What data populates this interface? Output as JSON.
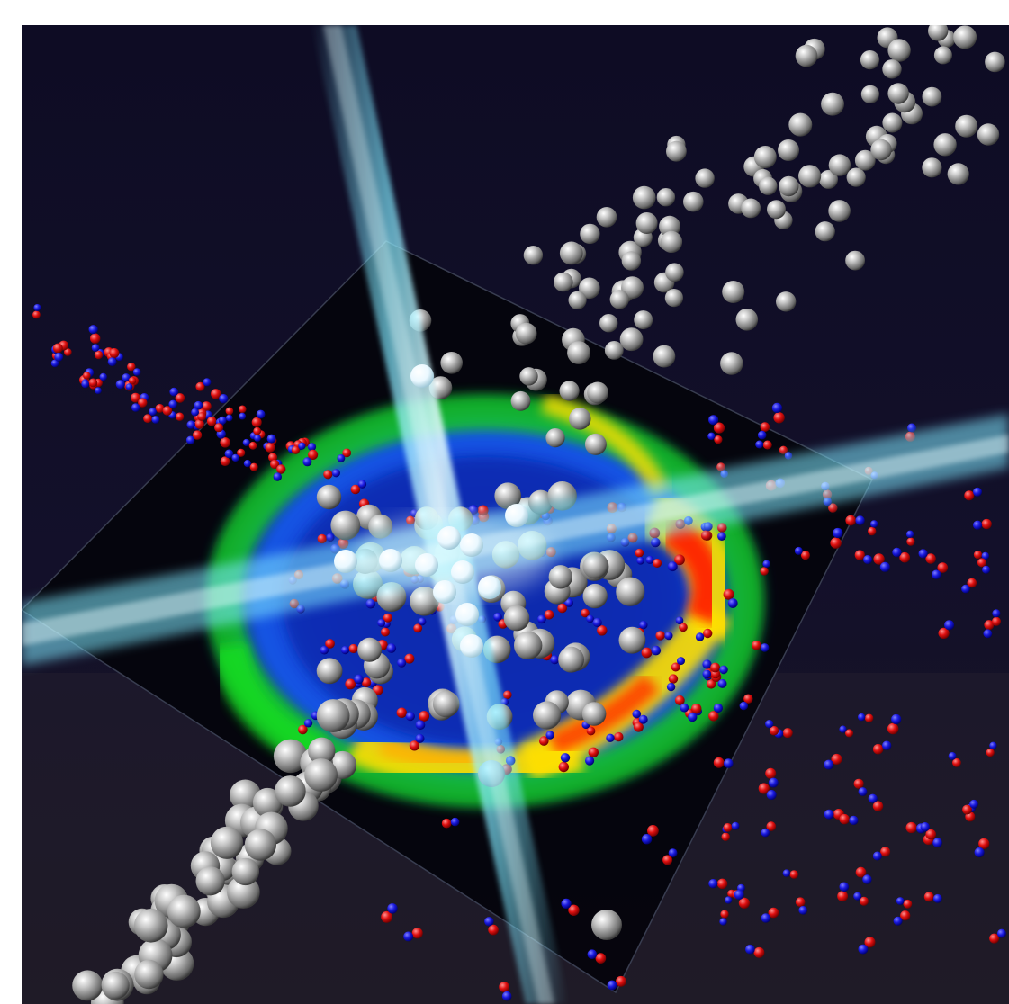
{
  "figure": {
    "colors": {
      "background_top": "#0e0c24",
      "background_bottom": "#1a1622",
      "beam": "#7fe8ff",
      "beam_core": "#e8fdff",
      "atom_gray": "#9a9a9a",
      "atom_red": "#e01010",
      "atom_blue": "#1a1ae0",
      "heat_low": "#0a1a9a",
      "heat_mid": "#18e020",
      "heat_high": "#ffe000",
      "heat_max": "#ff2000"
    },
    "elements": [
      "detector-panel",
      "diffraction-ring-heatmap",
      "x-ray-beam-vertical",
      "x-ray-beam-horizontal",
      "gray-atom-cluster",
      "nitrogen-oxide-molecules"
    ]
  }
}
